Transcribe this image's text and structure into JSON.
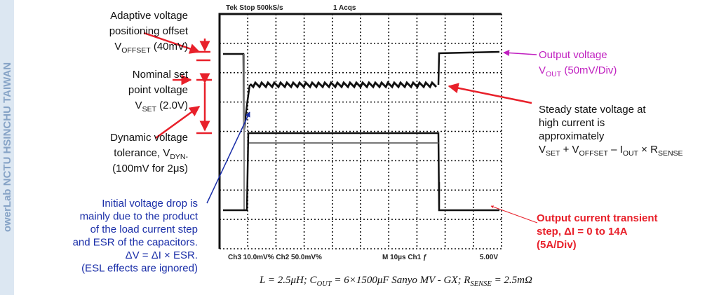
{
  "watermark": "owerLab NCTU HSINCHU TAIWAN",
  "annotations": {
    "offset": {
      "lines": [
        [
          "Adaptive voltage"
        ],
        [
          "positioning offset"
        ],
        [
          "V",
          {
            "sub": "OFFSET"
          },
          " (40mV)"
        ]
      ]
    },
    "nominal": {
      "lines": [
        [
          "Nominal set"
        ],
        [
          "point voltage"
        ],
        [
          "V",
          {
            "sub": "SET"
          },
          " (2.0V)"
        ]
      ]
    },
    "dynamic": {
      "lines": [
        [
          "Dynamic voltage"
        ],
        [
          "tolerance, V",
          {
            "sub": "DYN-"
          }
        ],
        [
          "(100mV for 2μs)"
        ]
      ]
    },
    "initial_drop": {
      "lines": [
        [
          "Initial voltage drop is"
        ],
        [
          "mainly due to the product"
        ],
        [
          "of the load current step"
        ],
        [
          "and ESR of the capacitors."
        ],
        [
          "ΔV = ΔI × ESR."
        ],
        [
          "(ESL effects are ignored)"
        ]
      ]
    },
    "output_voltage": {
      "lines": [
        [
          "Output voltage"
        ],
        [
          "V",
          {
            "sub": "OUT"
          },
          " (50mV/Div)"
        ]
      ]
    },
    "steady_state": {
      "lines": [
        [
          "Steady state voltage at"
        ],
        [
          "high current is"
        ],
        [
          "approximately"
        ],
        [
          "V",
          {
            "sub": "SET"
          },
          " + V",
          {
            "sub": "OFFSET"
          },
          " – I",
          {
            "sub": "OUT"
          },
          " × R",
          {
            "sub": "SENSE"
          }
        ]
      ]
    },
    "output_current": {
      "lines": [
        [
          "Output current transient"
        ],
        [
          "step, ΔI = 0 to 14A"
        ],
        [
          "(5A/Div)"
        ]
      ]
    }
  },
  "scope": {
    "top_left": "Tek Stop 500kS/s",
    "top_mid": "1 Acqs",
    "bottom_left": "Ch3 10.0mV%  Ch2 50.0mV%",
    "bottom_mid": "M 10µs Ch1 ƒ",
    "bottom_right": "5.00V"
  },
  "formula": {
    "lines": [
      [
        "L = 2.5μH; C",
        {
          "sub": "OUT"
        },
        " = 6×1500μF Sanyo MV - GX; R",
        {
          "sub": "SENSE"
        },
        " = 2.5mΩ"
      ]
    ]
  }
}
